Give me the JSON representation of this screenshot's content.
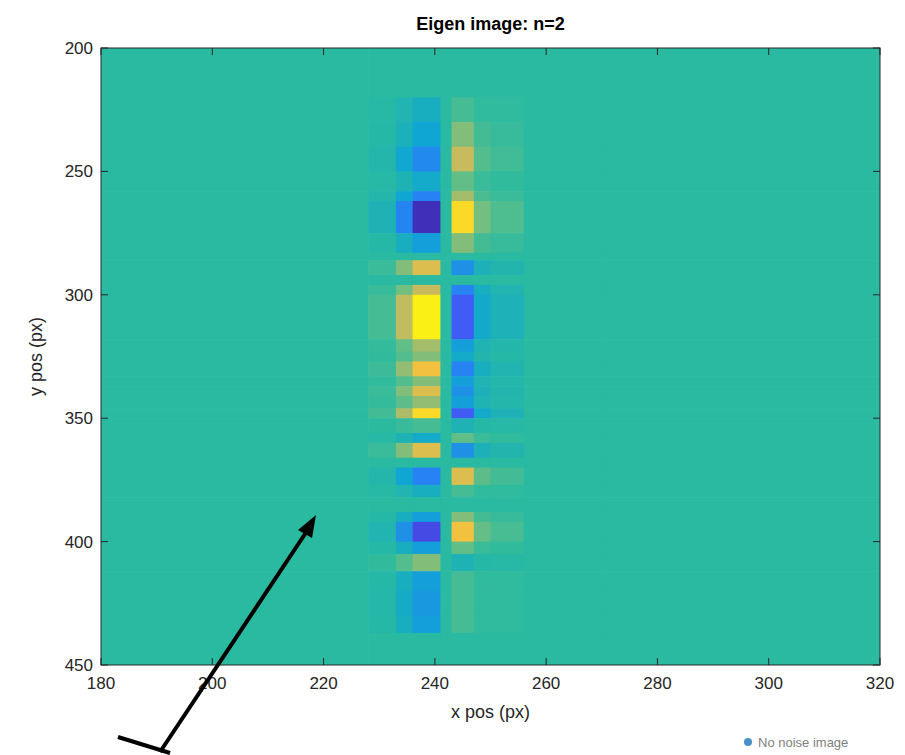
{
  "chart_data": {
    "type": "heatmap",
    "title": "Eigen image: n=2",
    "x_label": "x pos (px)",
    "y_label": "y pos (px)",
    "annotation": "No noise image",
    "xlim": [
      180,
      320
    ],
    "xticks": [
      180,
      200,
      220,
      240,
      260,
      280,
      300,
      320
    ],
    "ylim": [
      200,
      450
    ],
    "yticks": [
      200,
      250,
      300,
      350,
      400,
      450
    ],
    "clim": [
      -1,
      1
    ],
    "x_edges": [
      180,
      228,
      233,
      236,
      241,
      243,
      247,
      250,
      256,
      270,
      320
    ],
    "y_edges": [
      200,
      220,
      230,
      240,
      250,
      258,
      262,
      275,
      283,
      286,
      292,
      296,
      300,
      318,
      323,
      327,
      333,
      337,
      341,
      346,
      350,
      356,
      360,
      366,
      370,
      377,
      382,
      388,
      392,
      400,
      405,
      412,
      420,
      430,
      437,
      450
    ],
    "cells": [
      [
        0,
        0,
        0,
        0,
        0,
        0,
        0,
        0,
        0,
        0
      ],
      [
        0,
        -0.02,
        -0.08,
        -0.15,
        0,
        0.1,
        0.03,
        0.02,
        0,
        0
      ],
      [
        0,
        -0.03,
        -0.13,
        -0.25,
        0,
        0.3,
        0.09,
        0.05,
        0,
        0
      ],
      [
        0,
        -0.05,
        -0.23,
        -0.45,
        0,
        0.5,
        0.15,
        0.08,
        0,
        0
      ],
      [
        0,
        -0.02,
        -0.1,
        -0.2,
        0,
        0.2,
        0.06,
        0.03,
        0,
        0
      ],
      [
        0,
        -0.05,
        -0.25,
        -0.5,
        0,
        0.4,
        0.12,
        0.06,
        0,
        0
      ],
      [
        0,
        -0.1,
        -0.48,
        -0.95,
        0,
        0.85,
        0.26,
        0.13,
        0,
        0
      ],
      [
        0,
        -0.03,
        -0.15,
        -0.3,
        0,
        0.3,
        0.09,
        0.05,
        0,
        0
      ],
      [
        0,
        0,
        0,
        0,
        0,
        0,
        0,
        0,
        0,
        0
      ],
      [
        0,
        0.06,
        0.3,
        0.6,
        0,
        -0.4,
        -0.12,
        -0.06,
        0,
        0
      ],
      [
        0,
        0,
        0,
        0,
        0,
        0,
        0,
        0,
        0,
        0
      ],
      [
        0,
        0.05,
        0.25,
        0.5,
        0,
        -0.5,
        -0.15,
        -0.08,
        0,
        0
      ],
      [
        0,
        0.1,
        0.48,
        0.95,
        0,
        -0.7,
        -0.21,
        -0.11,
        0,
        0
      ],
      [
        0,
        0.04,
        0.2,
        0.4,
        0,
        -0.3,
        -0.09,
        -0.05,
        0,
        0
      ],
      [
        0,
        0.03,
        0.15,
        0.3,
        0,
        -0.2,
        -0.06,
        -0.03,
        0,
        0
      ],
      [
        0,
        0.07,
        0.35,
        0.7,
        0,
        -0.5,
        -0.15,
        -0.08,
        0,
        0
      ],
      [
        0,
        0.03,
        0.15,
        0.3,
        0,
        -0.3,
        -0.09,
        -0.05,
        0,
        0
      ],
      [
        0,
        0.06,
        0.3,
        0.6,
        0,
        -0.4,
        -0.12,
        -0.06,
        0,
        0
      ],
      [
        0,
        0.04,
        0.18,
        0.35,
        0,
        -0.3,
        -0.09,
        -0.05,
        0,
        0
      ],
      [
        0,
        0.09,
        0.43,
        0.85,
        0,
        -0.7,
        -0.21,
        -0.11,
        0,
        0
      ],
      [
        0,
        0.01,
        0.05,
        0.1,
        0,
        -0.1,
        -0.03,
        -0.02,
        0,
        0
      ],
      [
        0,
        -0.02,
        -0.1,
        -0.2,
        0,
        0.2,
        0.06,
        0.03,
        0,
        0
      ],
      [
        0,
        0.06,
        0.3,
        0.6,
        0,
        -0.4,
        -0.12,
        -0.06,
        0,
        0
      ],
      [
        0,
        0,
        0,
        0,
        0,
        0,
        0,
        0,
        0,
        0
      ],
      [
        0,
        -0.05,
        -0.25,
        -0.5,
        0,
        0.6,
        0.18,
        0.09,
        0,
        0
      ],
      [
        0,
        -0.02,
        -0.08,
        -0.15,
        0,
        0.1,
        0.03,
        0.02,
        0,
        0
      ],
      [
        0,
        0,
        0,
        0,
        0,
        0,
        0,
        0,
        0,
        0
      ],
      [
        0,
        -0.03,
        -0.15,
        -0.3,
        0,
        0.3,
        0.09,
        0.05,
        0,
        0
      ],
      [
        0,
        -0.08,
        -0.4,
        -0.8,
        0,
        0.7,
        0.21,
        0.11,
        0,
        0
      ],
      [
        0,
        -0.03,
        -0.15,
        -0.3,
        0,
        0.2,
        0.06,
        0.03,
        0,
        0
      ],
      [
        0,
        0.03,
        0.15,
        0.3,
        0,
        -0.1,
        -0.03,
        -0.02,
        0,
        0
      ],
      [
        0,
        -0.03,
        -0.15,
        -0.3,
        0,
        0.1,
        0.03,
        0.02,
        0,
        0
      ],
      [
        0,
        -0.04,
        -0.18,
        -0.35,
        0,
        0.1,
        0.03,
        0.02,
        0,
        0
      ],
      [
        0,
        -0.03,
        -0.15,
        -0.3,
        0,
        0.1,
        0.03,
        0.02,
        0,
        0
      ],
      [
        0,
        0,
        0,
        0,
        0,
        0,
        0,
        0,
        0,
        0
      ]
    ]
  }
}
